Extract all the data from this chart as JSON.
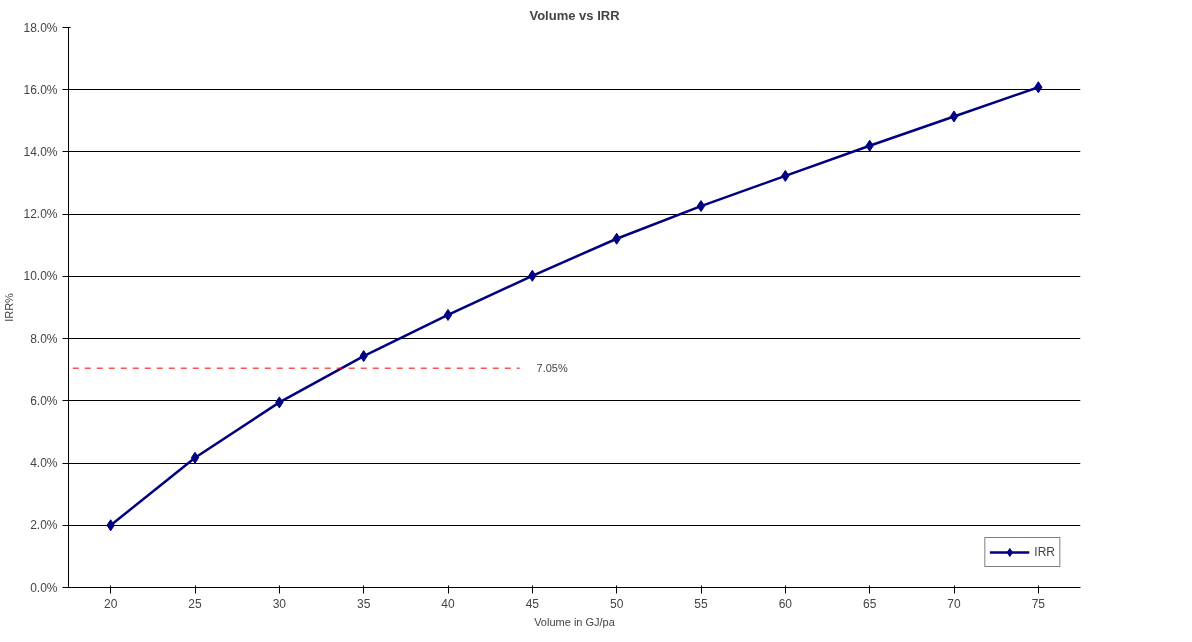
{
  "chart_data": {
    "type": "line",
    "title": "Volume vs IRR",
    "xlabel": "Volume in GJ/pa",
    "ylabel": "IRR%",
    "categories": [
      "20",
      "25",
      "30",
      "35",
      "40",
      "45",
      "50",
      "55",
      "60",
      "65",
      "70",
      "75"
    ],
    "series": [
      {
        "name": "IRR",
        "color": "#000080",
        "values": [
          2.0,
          4.17,
          5.95,
          7.44,
          8.76,
          10.02,
          11.21,
          12.26,
          13.23,
          14.2,
          15.14,
          16.08
        ]
      }
    ],
    "ylim": [
      0,
      18
    ],
    "yticks": [
      {
        "value": 0,
        "label": "0.0%"
      },
      {
        "value": 2,
        "label": "2.0%"
      },
      {
        "value": 4,
        "label": "4.0%"
      },
      {
        "value": 6,
        "label": "6.0%"
      },
      {
        "value": 8,
        "label": "8.0%"
      },
      {
        "value": 10,
        "label": "10.0%"
      },
      {
        "value": 12,
        "label": "12.0%"
      },
      {
        "value": 14,
        "label": "14.0%"
      },
      {
        "value": 16,
        "label": "16.0%"
      },
      {
        "value": 18,
        "label": "18.0%"
      }
    ],
    "ref_lines": [
      {
        "axis": "y",
        "value": 7.05,
        "label": "7.05%",
        "color": "#ff0000",
        "line_style": "dashed"
      }
    ],
    "grid": "y",
    "legend": "bottom right",
    "marker": "diamond",
    "line_style": "solid"
  }
}
